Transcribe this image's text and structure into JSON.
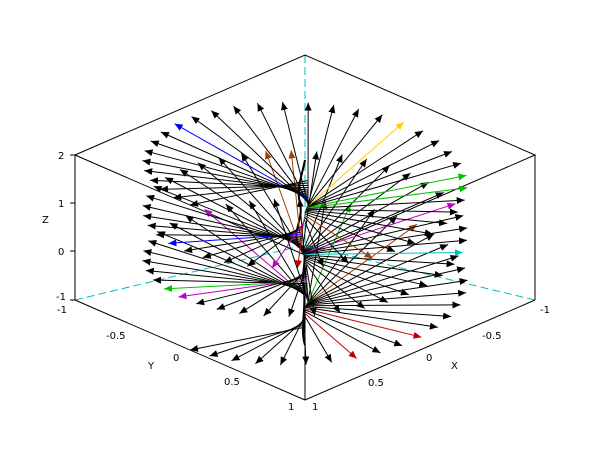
{
  "chart_data": {
    "type": "3d-vector-field",
    "title": "",
    "axes": {
      "x": {
        "label": "X",
        "range": [
          -1,
          1
        ],
        "ticks": [
          "-1",
          "-0.5",
          "0",
          "0.5",
          "1"
        ]
      },
      "y": {
        "label": "Y",
        "range": [
          -1,
          1
        ],
        "ticks": [
          "-1",
          "-0.5",
          "0",
          "0.5",
          "1"
        ]
      },
      "z": {
        "label": "Z",
        "range": [
          -1,
          2
        ],
        "ticks": [
          "-1",
          "0",
          "1",
          "2"
        ]
      }
    },
    "curve": "helix x = cos(t), y = sin(t), z = t/pi, anchored near the z-axis",
    "vector_count": 120,
    "arrow_colors": [
      "#000000",
      "#0000ff",
      "#00c000",
      "#00c0c0",
      "#c000c0",
      "#c00000",
      "#ffd000",
      "#a04000"
    ],
    "box": {
      "edges": "black",
      "back_edges": "cyan dashed"
    }
  }
}
